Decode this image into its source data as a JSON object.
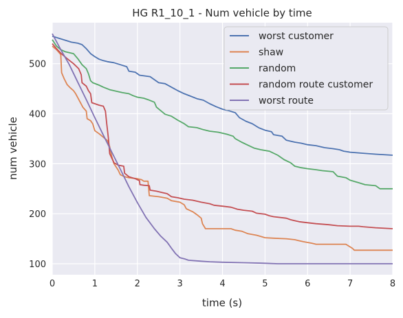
{
  "chart_data": {
    "type": "line",
    "title": "HG R1_10_1 - Num vehicle by time",
    "xlabel": "time (s)",
    "ylabel": "num vehicle",
    "xlim": [
      0,
      8
    ],
    "ylim": [
      78,
      582
    ],
    "xticks": [
      "0",
      "1",
      "2",
      "3",
      "4",
      "5",
      "6",
      "7",
      "8"
    ],
    "yticks": [
      "100",
      "200",
      "300",
      "400",
      "500"
    ],
    "grid": true,
    "legend_position": "top-right",
    "series": [
      {
        "name": "worst customer",
        "color": "#4c72b0",
        "points": [
          [
            0,
            555
          ],
          [
            0.15,
            551
          ],
          [
            0.3,
            547
          ],
          [
            0.45,
            543
          ],
          [
            0.6,
            541
          ],
          [
            0.7,
            538
          ],
          [
            0.8,
            530
          ],
          [
            0.9,
            520
          ],
          [
            1.0,
            514
          ],
          [
            1.1,
            509
          ],
          [
            1.2,
            506
          ],
          [
            1.3,
            504
          ],
          [
            1.45,
            502
          ],
          [
            1.6,
            498
          ],
          [
            1.75,
            494
          ],
          [
            1.8,
            485
          ],
          [
            1.95,
            483
          ],
          [
            2.05,
            477
          ],
          [
            2.3,
            474
          ],
          [
            2.4,
            468
          ],
          [
            2.5,
            462
          ],
          [
            2.65,
            460
          ],
          [
            2.8,
            453
          ],
          [
            2.95,
            446
          ],
          [
            3.1,
            440
          ],
          [
            3.25,
            435
          ],
          [
            3.4,
            430
          ],
          [
            3.55,
            427
          ],
          [
            3.7,
            420
          ],
          [
            3.85,
            414
          ],
          [
            4.0,
            409
          ],
          [
            4.15,
            406
          ],
          [
            4.3,
            402
          ],
          [
            4.4,
            392
          ],
          [
            4.55,
            385
          ],
          [
            4.7,
            380
          ],
          [
            4.85,
            372
          ],
          [
            5.0,
            367
          ],
          [
            5.15,
            364
          ],
          [
            5.2,
            358
          ],
          [
            5.4,
            355
          ],
          [
            5.5,
            347
          ],
          [
            5.7,
            343
          ],
          [
            5.85,
            341
          ],
          [
            6.0,
            338
          ],
          [
            6.2,
            336
          ],
          [
            6.4,
            332
          ],
          [
            6.6,
            330
          ],
          [
            6.75,
            328
          ],
          [
            6.85,
            325
          ],
          [
            7.0,
            323
          ],
          [
            7.3,
            321
          ],
          [
            7.6,
            319
          ],
          [
            8.0,
            317
          ]
        ]
      },
      {
        "name": "shaw",
        "color": "#dd8452",
        "points": [
          [
            0,
            535
          ],
          [
            0.1,
            528
          ],
          [
            0.2,
            518
          ],
          [
            0.22,
            482
          ],
          [
            0.28,
            470
          ],
          [
            0.35,
            458
          ],
          [
            0.42,
            452
          ],
          [
            0.5,
            446
          ],
          [
            0.55,
            440
          ],
          [
            0.6,
            432
          ],
          [
            0.65,
            424
          ],
          [
            0.72,
            413
          ],
          [
            0.8,
            405
          ],
          [
            0.82,
            390
          ],
          [
            0.9,
            386
          ],
          [
            0.95,
            380
          ],
          [
            1.0,
            366
          ],
          [
            1.1,
            360
          ],
          [
            1.2,
            353
          ],
          [
            1.3,
            346
          ],
          [
            1.35,
            334
          ],
          [
            1.4,
            314
          ],
          [
            1.45,
            300
          ],
          [
            1.55,
            287
          ],
          [
            1.6,
            278
          ],
          [
            1.7,
            274
          ],
          [
            1.8,
            272
          ],
          [
            1.9,
            271
          ],
          [
            2.0,
            270
          ],
          [
            2.1,
            268
          ],
          [
            2.15,
            265
          ],
          [
            2.25,
            265
          ],
          [
            2.28,
            236
          ],
          [
            2.5,
            234
          ],
          [
            2.7,
            231
          ],
          [
            2.8,
            226
          ],
          [
            3.0,
            223
          ],
          [
            3.1,
            218
          ],
          [
            3.15,
            210
          ],
          [
            3.3,
            204
          ],
          [
            3.4,
            198
          ],
          [
            3.5,
            191
          ],
          [
            3.53,
            180
          ],
          [
            3.6,
            170
          ],
          [
            3.8,
            170
          ],
          [
            4.2,
            170
          ],
          [
            4.3,
            167
          ],
          [
            4.45,
            165
          ],
          [
            4.6,
            160
          ],
          [
            4.8,
            157
          ],
          [
            5.0,
            152
          ],
          [
            5.2,
            151
          ],
          [
            5.5,
            150
          ],
          [
            5.7,
            148
          ],
          [
            5.8,
            146
          ],
          [
            5.9,
            144
          ],
          [
            6.1,
            141
          ],
          [
            6.2,
            139
          ],
          [
            6.5,
            139
          ],
          [
            6.8,
            139
          ],
          [
            6.9,
            139
          ],
          [
            7.05,
            131
          ],
          [
            7.1,
            127
          ],
          [
            7.5,
            127
          ],
          [
            8.0,
            127
          ]
        ]
      },
      {
        "name": "random",
        "color": "#55a868",
        "points": [
          [
            0,
            548
          ],
          [
            0.1,
            535
          ],
          [
            0.2,
            528
          ],
          [
            0.3,
            524
          ],
          [
            0.5,
            520
          ],
          [
            0.6,
            510
          ],
          [
            0.7,
            498
          ],
          [
            0.8,
            490
          ],
          [
            0.85,
            480
          ],
          [
            0.9,
            466
          ],
          [
            0.95,
            462
          ],
          [
            1.1,
            457
          ],
          [
            1.2,
            453
          ],
          [
            1.35,
            448
          ],
          [
            1.5,
            445
          ],
          [
            1.65,
            442
          ],
          [
            1.8,
            440
          ],
          [
            1.9,
            436
          ],
          [
            2.0,
            433
          ],
          [
            2.15,
            431
          ],
          [
            2.25,
            428
          ],
          [
            2.4,
            423
          ],
          [
            2.45,
            413
          ],
          [
            2.55,
            406
          ],
          [
            2.65,
            399
          ],
          [
            2.8,
            395
          ],
          [
            2.95,
            387
          ],
          [
            3.1,
            380
          ],
          [
            3.2,
            374
          ],
          [
            3.4,
            372
          ],
          [
            3.55,
            368
          ],
          [
            3.7,
            365
          ],
          [
            3.9,
            363
          ],
          [
            4.1,
            359
          ],
          [
            4.25,
            355
          ],
          [
            4.3,
            350
          ],
          [
            4.45,
            343
          ],
          [
            4.6,
            337
          ],
          [
            4.75,
            331
          ],
          [
            4.9,
            328
          ],
          [
            5.1,
            325
          ],
          [
            5.3,
            317
          ],
          [
            5.45,
            308
          ],
          [
            5.6,
            302
          ],
          [
            5.7,
            295
          ],
          [
            5.85,
            292
          ],
          [
            6.0,
            290
          ],
          [
            6.2,
            288
          ],
          [
            6.35,
            286
          ],
          [
            6.6,
            284
          ],
          [
            6.7,
            275
          ],
          [
            6.9,
            272
          ],
          [
            7.0,
            267
          ],
          [
            7.2,
            262
          ],
          [
            7.35,
            258
          ],
          [
            7.6,
            256
          ],
          [
            7.7,
            250
          ],
          [
            8.0,
            250
          ]
        ]
      },
      {
        "name": "random route customer",
        "color": "#c44e52",
        "points": [
          [
            0,
            540
          ],
          [
            0.1,
            530
          ],
          [
            0.2,
            521
          ],
          [
            0.35,
            510
          ],
          [
            0.5,
            500
          ],
          [
            0.62,
            490
          ],
          [
            0.68,
            478
          ],
          [
            0.7,
            462
          ],
          [
            0.8,
            455
          ],
          [
            0.85,
            446
          ],
          [
            0.9,
            440
          ],
          [
            0.93,
            422
          ],
          [
            1.0,
            420
          ],
          [
            1.1,
            417
          ],
          [
            1.2,
            415
          ],
          [
            1.25,
            405
          ],
          [
            1.28,
            380
          ],
          [
            1.32,
            350
          ],
          [
            1.35,
            320
          ],
          [
            1.45,
            302
          ],
          [
            1.55,
            297
          ],
          [
            1.68,
            295
          ],
          [
            1.7,
            281
          ],
          [
            1.8,
            274
          ],
          [
            1.95,
            270
          ],
          [
            2.05,
            266
          ],
          [
            2.06,
            258
          ],
          [
            2.15,
            257
          ],
          [
            2.28,
            256
          ],
          [
            2.3,
            247
          ],
          [
            2.45,
            245
          ],
          [
            2.55,
            243
          ],
          [
            2.7,
            240
          ],
          [
            2.8,
            234
          ],
          [
            2.95,
            232
          ],
          [
            3.1,
            229
          ],
          [
            3.3,
            227
          ],
          [
            3.5,
            223
          ],
          [
            3.7,
            220
          ],
          [
            3.8,
            217
          ],
          [
            4.0,
            215
          ],
          [
            4.2,
            213
          ],
          [
            4.35,
            209
          ],
          [
            4.5,
            207
          ],
          [
            4.7,
            205
          ],
          [
            4.8,
            201
          ],
          [
            5.0,
            199
          ],
          [
            5.1,
            196
          ],
          [
            5.2,
            194
          ],
          [
            5.5,
            191
          ],
          [
            5.6,
            188
          ],
          [
            5.7,
            186
          ],
          [
            5.8,
            184
          ],
          [
            6.0,
            182
          ],
          [
            6.2,
            180
          ],
          [
            6.5,
            178
          ],
          [
            6.7,
            176
          ],
          [
            7.0,
            175
          ],
          [
            7.2,
            175
          ],
          [
            7.3,
            174
          ],
          [
            7.6,
            172
          ],
          [
            8.0,
            170
          ]
        ]
      },
      {
        "name": "worst route",
        "color": "#8172b3",
        "points": [
          [
            0,
            560
          ],
          [
            0.2,
            528
          ],
          [
            0.4,
            498
          ],
          [
            0.6,
            463
          ],
          [
            0.8,
            428
          ],
          [
            1.0,
            392
          ],
          [
            1.2,
            357
          ],
          [
            1.4,
            323
          ],
          [
            1.6,
            289
          ],
          [
            1.8,
            254
          ],
          [
            2.0,
            222
          ],
          [
            2.2,
            193
          ],
          [
            2.4,
            170
          ],
          [
            2.55,
            155
          ],
          [
            2.7,
            143
          ],
          [
            2.8,
            131
          ],
          [
            2.9,
            120
          ],
          [
            3.0,
            112
          ],
          [
            3.1,
            110
          ],
          [
            3.2,
            107
          ],
          [
            3.5,
            105
          ],
          [
            3.7,
            104
          ],
          [
            4.0,
            103
          ],
          [
            4.5,
            102
          ],
          [
            5.0,
            101
          ],
          [
            5.3,
            100
          ],
          [
            6.0,
            100
          ],
          [
            7.0,
            100
          ],
          [
            8.0,
            100
          ]
        ]
      }
    ]
  }
}
